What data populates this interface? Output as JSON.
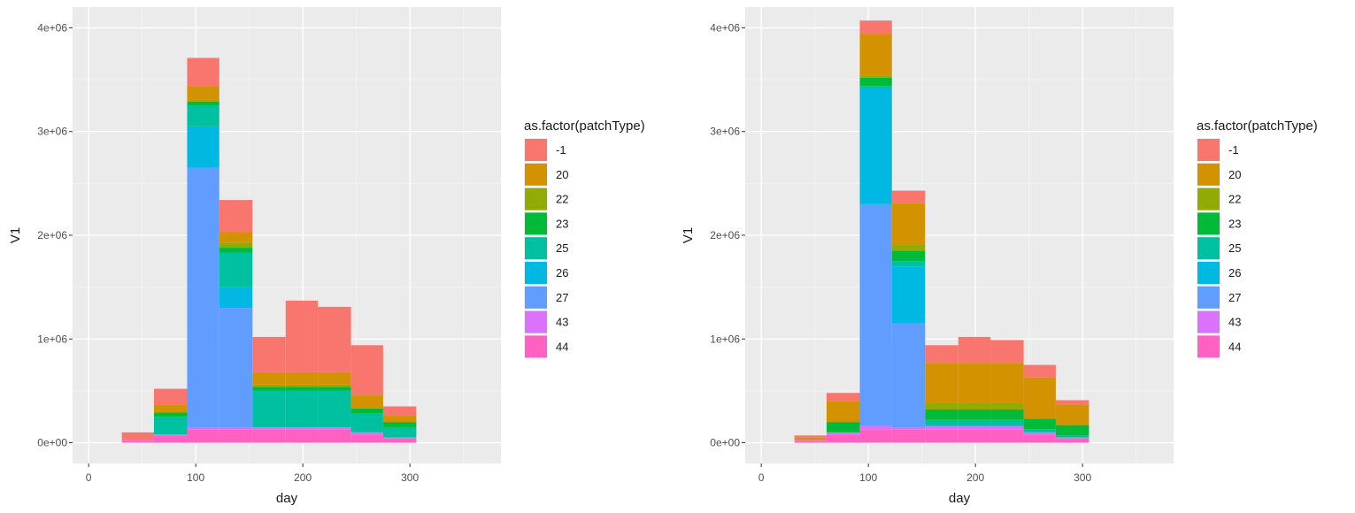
{
  "chart_data": [
    {
      "type": "bar",
      "stacked": true,
      "xlabel": "day",
      "ylabel": "V1",
      "xlim": [
        -15,
        385
      ],
      "ylim": [
        -200000,
        4200000
      ],
      "x_ticks": [
        0,
        100,
        200,
        300
      ],
      "x_tick_labels": [
        "0",
        "100",
        "200",
        "300"
      ],
      "y_ticks": [
        0,
        1000000,
        2000000,
        3000000,
        4000000
      ],
      "y_tick_labels": [
        "0e+00",
        "1e+06",
        "2e+06",
        "3e+06",
        "4e+06"
      ],
      "grid": true,
      "legend": {
        "title": "as.factor(patchType)",
        "placement": "right",
        "entries": [
          "-1",
          "20",
          "22",
          "23",
          "25",
          "26",
          "27",
          "43",
          "44"
        ],
        "colors": [
          "#F8766D",
          "#D39200",
          "#93AA00",
          "#00BA38",
          "#00C19F",
          "#00B9E3",
          "#619CFF",
          "#DB72FB",
          "#FF61C3"
        ]
      },
      "bins": [
        {
          "x0": 31,
          "x1": 61,
          "values": [
            70000,
            0,
            0,
            0,
            0,
            0,
            0,
            10000,
            20000
          ]
        },
        {
          "x0": 61,
          "x1": 92,
          "values": [
            150000,
            80000,
            0,
            40000,
            170000,
            0,
            0,
            10000,
            70000
          ]
        },
        {
          "x0": 92,
          "x1": 122,
          "values": [
            270000,
            140000,
            10000,
            40000,
            200000,
            400000,
            2500000,
            20000,
            130000
          ]
        },
        {
          "x0": 122,
          "x1": 153,
          "values": [
            310000,
            100000,
            50000,
            50000,
            330000,
            200000,
            1150000,
            20000,
            130000
          ]
        },
        {
          "x0": 153,
          "x1": 184,
          "values": [
            340000,
            120000,
            20000,
            40000,
            350000,
            0,
            0,
            20000,
            130000
          ]
        },
        {
          "x0": 184,
          "x1": 214,
          "values": [
            690000,
            120000,
            20000,
            40000,
            350000,
            0,
            0,
            20000,
            130000
          ]
        },
        {
          "x0": 214,
          "x1": 245,
          "values": [
            630000,
            120000,
            20000,
            40000,
            350000,
            0,
            0,
            20000,
            130000
          ]
        },
        {
          "x0": 245,
          "x1": 275,
          "values": [
            480000,
            130000,
            0,
            50000,
            180000,
            0,
            0,
            20000,
            80000
          ]
        },
        {
          "x0": 275,
          "x1": 306,
          "values": [
            90000,
            60000,
            0,
            50000,
            100000,
            0,
            0,
            10000,
            40000
          ]
        }
      ]
    },
    {
      "type": "bar",
      "stacked": true,
      "xlabel": "day",
      "ylabel": "V1",
      "xlim": [
        -15,
        385
      ],
      "ylim": [
        -200000,
        4200000
      ],
      "x_ticks": [
        0,
        100,
        200,
        300
      ],
      "x_tick_labels": [
        "0",
        "100",
        "200",
        "300"
      ],
      "y_ticks": [
        0,
        1000000,
        2000000,
        3000000,
        4000000
      ],
      "y_tick_labels": [
        "0e+00",
        "1e+06",
        "2e+06",
        "3e+06",
        "4e+06"
      ],
      "grid": true,
      "legend": {
        "title": "as.factor(patchType)",
        "placement": "right",
        "entries": [
          "-1",
          "20",
          "22",
          "23",
          "25",
          "26",
          "27",
          "43",
          "44"
        ],
        "colors": [
          "#F8766D",
          "#D39200",
          "#93AA00",
          "#00BA38",
          "#00C19F",
          "#00B9E3",
          "#619CFF",
          "#DB72FB",
          "#FF61C3"
        ]
      },
      "bins": [
        {
          "x0": 31,
          "x1": 61,
          "values": [
            20000,
            20000,
            0,
            0,
            0,
            0,
            0,
            10000,
            20000
          ]
        },
        {
          "x0": 61,
          "x1": 92,
          "values": [
            80000,
            200000,
            0,
            100000,
            0,
            0,
            0,
            20000,
            80000
          ]
        },
        {
          "x0": 92,
          "x1": 122,
          "values": [
            130000,
            400000,
            20000,
            80000,
            20000,
            1120000,
            2140000,
            30000,
            130000
          ]
        },
        {
          "x0": 122,
          "x1": 153,
          "values": [
            120000,
            400000,
            60000,
            100000,
            50000,
            550000,
            1000000,
            20000,
            130000
          ]
        },
        {
          "x0": 153,
          "x1": 184,
          "values": [
            170000,
            390000,
            60000,
            100000,
            60000,
            0,
            0,
            30000,
            130000
          ]
        },
        {
          "x0": 184,
          "x1": 214,
          "values": [
            250000,
            390000,
            60000,
            100000,
            60000,
            0,
            0,
            30000,
            130000
          ]
        },
        {
          "x0": 214,
          "x1": 245,
          "values": [
            220000,
            390000,
            60000,
            100000,
            60000,
            0,
            0,
            30000,
            130000
          ]
        },
        {
          "x0": 245,
          "x1": 275,
          "values": [
            120000,
            400000,
            0,
            100000,
            30000,
            0,
            0,
            20000,
            80000
          ]
        },
        {
          "x0": 275,
          "x1": 306,
          "values": [
            40000,
            200000,
            0,
            100000,
            20000,
            0,
            0,
            10000,
            40000
          ]
        }
      ]
    }
  ]
}
